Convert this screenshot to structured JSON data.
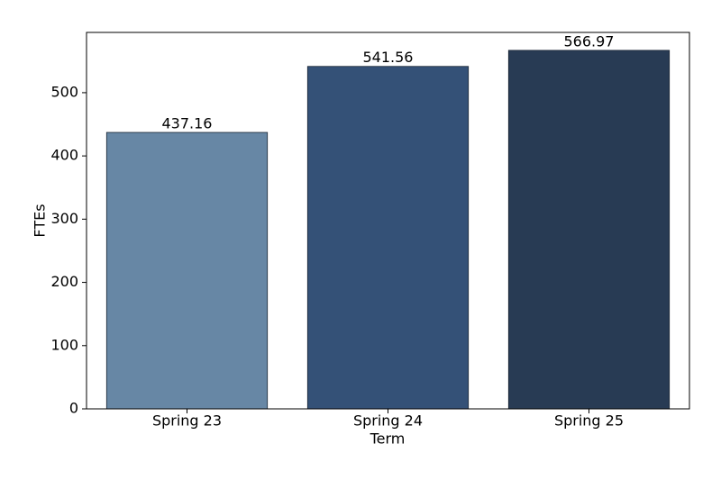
{
  "chart_data": {
    "type": "bar",
    "x_label": "Term",
    "y_label": "FTEs",
    "categories": [
      "Spring 23",
      "Spring 24",
      "Spring 25"
    ],
    "values": [
      437.16,
      541.56,
      566.97
    ],
    "colors": [
      "#6787a5",
      "#345177",
      "#283b54"
    ],
    "ylim": [
      0,
      595.3
    ],
    "yticks": [
      0,
      100,
      200,
      300,
      400,
      500
    ],
    "grid": false
  }
}
